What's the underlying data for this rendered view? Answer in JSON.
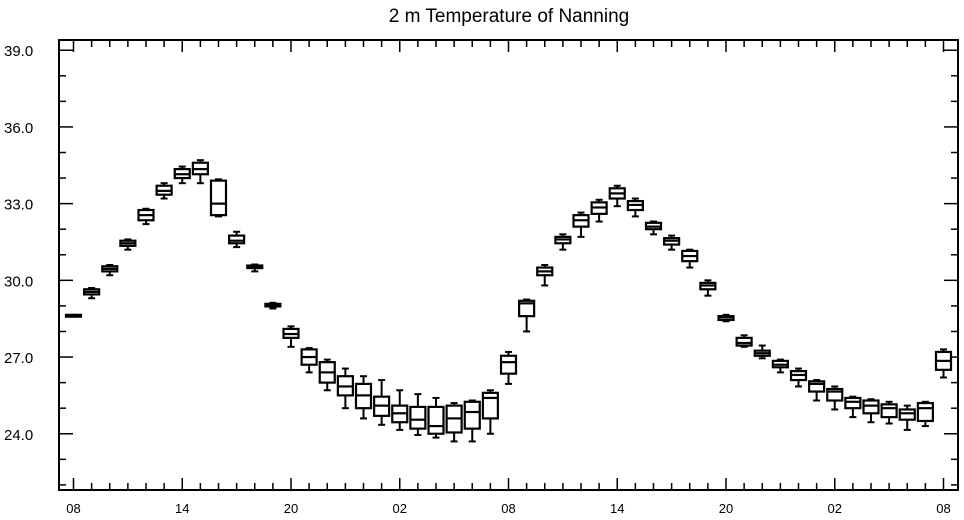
{
  "chart_data": {
    "type": "boxplot",
    "title": "2 m Temperature of Nanning",
    "xlabel": "",
    "ylabel": "",
    "ylim": [
      21.8,
      39.4
    ],
    "yticks": [
      24.0,
      27.0,
      30.0,
      33.0,
      36.0,
      39.0
    ],
    "ytick_labels": [
      "24.0",
      "27.0",
      "30.0",
      "33.0",
      "36.0",
      "39.0"
    ],
    "yminor_step": 1.0,
    "x_start": 0,
    "x_end": 48,
    "xlim": [
      -0.8,
      48.8
    ],
    "xticks": [
      0,
      6,
      12,
      18,
      24,
      30,
      36,
      42,
      48
    ],
    "xtick_labels": [
      "08",
      "14",
      "20",
      "02",
      "08",
      "14",
      "20",
      "02",
      "08"
    ],
    "grid": false,
    "boxes": [
      {
        "x": 0,
        "min": 28.58,
        "q1": 28.58,
        "median": 28.62,
        "q3": 28.65,
        "max": 28.65
      },
      {
        "x": 1,
        "min": 29.3,
        "q1": 29.45,
        "median": 29.55,
        "q3": 29.65,
        "max": 29.7
      },
      {
        "x": 2,
        "min": 30.2,
        "q1": 30.35,
        "median": 30.45,
        "q3": 30.55,
        "max": 30.6
      },
      {
        "x": 3,
        "min": 31.2,
        "q1": 31.35,
        "median": 31.45,
        "q3": 31.55,
        "max": 31.6
      },
      {
        "x": 4,
        "min": 32.2,
        "q1": 32.35,
        "median": 32.55,
        "q3": 32.75,
        "max": 32.8
      },
      {
        "x": 5,
        "min": 33.2,
        "q1": 33.35,
        "median": 33.5,
        "q3": 33.7,
        "max": 33.8
      },
      {
        "x": 6,
        "min": 33.8,
        "q1": 34.0,
        "median": 34.15,
        "q3": 34.35,
        "max": 34.45
      },
      {
        "x": 7,
        "min": 33.8,
        "q1": 34.15,
        "median": 34.35,
        "q3": 34.6,
        "max": 34.7
      },
      {
        "x": 8,
        "min": 32.5,
        "q1": 32.55,
        "median": 33.0,
        "q3": 33.9,
        "max": 33.95
      },
      {
        "x": 9,
        "min": 31.3,
        "q1": 31.45,
        "median": 31.55,
        "q3": 31.75,
        "max": 31.9
      },
      {
        "x": 10,
        "min": 30.35,
        "q1": 30.48,
        "median": 30.53,
        "q3": 30.58,
        "max": 30.62
      },
      {
        "x": 11,
        "min": 28.9,
        "q1": 28.98,
        "median": 29.02,
        "q3": 29.08,
        "max": 29.12
      },
      {
        "x": 12,
        "min": 27.4,
        "q1": 27.75,
        "median": 27.9,
        "q3": 28.1,
        "max": 28.2
      },
      {
        "x": 13,
        "min": 26.4,
        "q1": 26.7,
        "median": 27.0,
        "q3": 27.3,
        "max": 27.35
      },
      {
        "x": 14,
        "min": 25.7,
        "q1": 26.0,
        "median": 26.4,
        "q3": 26.8,
        "max": 26.9
      },
      {
        "x": 15,
        "min": 25.0,
        "q1": 25.5,
        "median": 25.85,
        "q3": 26.25,
        "max": 26.55
      },
      {
        "x": 16,
        "min": 24.6,
        "q1": 25.0,
        "median": 25.5,
        "q3": 25.95,
        "max": 26.25
      },
      {
        "x": 17,
        "min": 24.35,
        "q1": 24.7,
        "median": 25.1,
        "q3": 25.45,
        "max": 26.1
      },
      {
        "x": 18,
        "min": 24.15,
        "q1": 24.45,
        "median": 24.8,
        "q3": 25.1,
        "max": 25.7
      },
      {
        "x": 19,
        "min": 23.95,
        "q1": 24.2,
        "median": 24.55,
        "q3": 25.05,
        "max": 25.55
      },
      {
        "x": 20,
        "min": 23.85,
        "q1": 24.0,
        "median": 24.3,
        "q3": 25.05,
        "max": 25.4
      },
      {
        "x": 21,
        "min": 23.7,
        "q1": 24.05,
        "median": 24.6,
        "q3": 25.1,
        "max": 25.2
      },
      {
        "x": 22,
        "min": 23.7,
        "q1": 24.2,
        "median": 24.85,
        "q3": 25.25,
        "max": 25.3
      },
      {
        "x": 23,
        "min": 24.0,
        "q1": 24.6,
        "median": 25.4,
        "q3": 25.6,
        "max": 25.7
      },
      {
        "x": 24,
        "min": 25.95,
        "q1": 26.35,
        "median": 26.8,
        "q3": 27.05,
        "max": 27.2
      },
      {
        "x": 25,
        "min": 28.0,
        "q1": 28.6,
        "median": 29.1,
        "q3": 29.2,
        "max": 29.25
      },
      {
        "x": 26,
        "min": 29.8,
        "q1": 30.2,
        "median": 30.35,
        "q3": 30.5,
        "max": 30.6
      },
      {
        "x": 27,
        "min": 31.2,
        "q1": 31.45,
        "median": 31.6,
        "q3": 31.7,
        "max": 31.8
      },
      {
        "x": 28,
        "min": 31.7,
        "q1": 32.1,
        "median": 32.35,
        "q3": 32.55,
        "max": 32.65
      },
      {
        "x": 29,
        "min": 32.3,
        "q1": 32.6,
        "median": 32.85,
        "q3": 33.05,
        "max": 33.15
      },
      {
        "x": 30,
        "min": 32.9,
        "q1": 33.2,
        "median": 33.4,
        "q3": 33.6,
        "max": 33.7
      },
      {
        "x": 31,
        "min": 32.5,
        "q1": 32.75,
        "median": 32.95,
        "q3": 33.1,
        "max": 33.2
      },
      {
        "x": 32,
        "min": 31.8,
        "q1": 32.0,
        "median": 32.1,
        "q3": 32.25,
        "max": 32.3
      },
      {
        "x": 33,
        "min": 31.2,
        "q1": 31.4,
        "median": 31.55,
        "q3": 31.65,
        "max": 31.75
      },
      {
        "x": 34,
        "min": 30.5,
        "q1": 30.75,
        "median": 30.95,
        "q3": 31.15,
        "max": 31.2
      },
      {
        "x": 35,
        "min": 29.4,
        "q1": 29.65,
        "median": 29.8,
        "q3": 29.9,
        "max": 30.0
      },
      {
        "x": 36,
        "min": 28.4,
        "q1": 28.45,
        "median": 28.55,
        "q3": 28.6,
        "max": 28.65
      },
      {
        "x": 37,
        "min": 27.4,
        "q1": 27.45,
        "median": 27.55,
        "q3": 27.75,
        "max": 27.85
      },
      {
        "x": 38,
        "min": 26.95,
        "q1": 27.05,
        "median": 27.15,
        "q3": 27.25,
        "max": 27.45
      },
      {
        "x": 39,
        "min": 26.4,
        "q1": 26.6,
        "median": 26.7,
        "q3": 26.85,
        "max": 26.9
      },
      {
        "x": 40,
        "min": 25.85,
        "q1": 26.1,
        "median": 26.3,
        "q3": 26.45,
        "max": 26.55
      },
      {
        "x": 41,
        "min": 25.3,
        "q1": 25.65,
        "median": 25.95,
        "q3": 26.05,
        "max": 26.1
      },
      {
        "x": 42,
        "min": 24.95,
        "q1": 25.3,
        "median": 25.65,
        "q3": 25.75,
        "max": 25.85
      },
      {
        "x": 43,
        "min": 24.65,
        "q1": 25.0,
        "median": 25.25,
        "q3": 25.4,
        "max": 25.45
      },
      {
        "x": 44,
        "min": 24.45,
        "q1": 24.8,
        "median": 25.1,
        "q3": 25.3,
        "max": 25.35
      },
      {
        "x": 45,
        "min": 24.4,
        "q1": 24.65,
        "median": 25.0,
        "q3": 25.15,
        "max": 25.25
      },
      {
        "x": 46,
        "min": 24.15,
        "q1": 24.55,
        "median": 24.8,
        "q3": 24.95,
        "max": 25.1
      },
      {
        "x": 47,
        "min": 24.3,
        "q1": 24.5,
        "median": 25.0,
        "q3": 25.2,
        "max": 25.25
      },
      {
        "x": 48,
        "min": 26.2,
        "q1": 26.5,
        "median": 26.85,
        "q3": 27.2,
        "max": 27.3
      }
    ],
    "colors": {
      "stroke": "#000000",
      "background": "#ffffff"
    }
  }
}
